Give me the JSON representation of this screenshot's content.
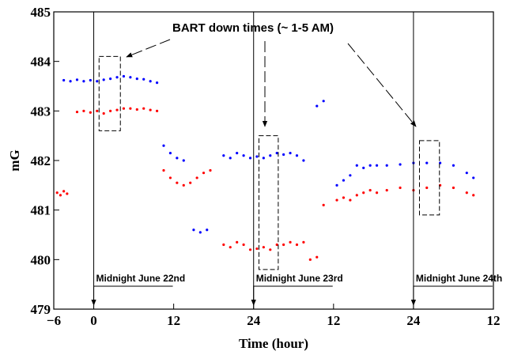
{
  "chart_data": {
    "type": "scatter",
    "xlabel": "Time (hour)",
    "ylabel": "mG",
    "annotation": "BART down times (~ 1-5 AM)",
    "xlim": [
      -6,
      60
    ],
    "ylim": [
      479,
      485
    ],
    "xticks": [
      {
        "value": -6,
        "label": "−6"
      },
      0,
      12,
      24,
      {
        "value": 36,
        "label": "12"
      },
      {
        "value": 48,
        "label": "24"
      },
      {
        "value": 60,
        "label": "12"
      }
    ],
    "yticks": [
      479,
      480,
      481,
      482,
      483,
      484,
      485
    ],
    "midnights": [
      {
        "x": 0,
        "label": "Midnight June 22nd"
      },
      {
        "x": 24,
        "label": "Midnight June 23rd"
      },
      {
        "x": 48,
        "label": "Midnight June 24th"
      }
    ],
    "regions": [
      {
        "x": [
          0.8,
          4
        ],
        "y": [
          482.6,
          484.1
        ]
      },
      {
        "x": [
          24.8,
          27.7
        ],
        "y": [
          479.8,
          482.5
        ]
      },
      {
        "x": [
          48.9,
          51.9
        ],
        "y": [
          480.9,
          482.4
        ]
      }
    ],
    "series": [
      {
        "color": "#0000ff",
        "x": [
          -4.5,
          -3.5,
          -2.5,
          -1.5,
          -0.5,
          0.5,
          1.5,
          2.5,
          3.5,
          4.5,
          5.5,
          6.5,
          7.5,
          8.5,
          9.5,
          10.5,
          11.5,
          12.5,
          13.5,
          15,
          16,
          17,
          19.5,
          20.5,
          21.5,
          22.5,
          23.5,
          24.5,
          25.5,
          26.5,
          27.5,
          28.5,
          29.5,
          30.5,
          31.5,
          33.5,
          34.5,
          36.5,
          37.5,
          38.5,
          39.5,
          40.5,
          41.5,
          42.5,
          44,
          46,
          48,
          50,
          52,
          54,
          56,
          57
        ],
        "values": [
          483.62,
          483.6,
          483.63,
          483.6,
          483.62,
          483.6,
          483.63,
          483.65,
          483.68,
          483.7,
          483.68,
          483.65,
          483.64,
          483.6,
          483.57,
          482.3,
          482.15,
          482.05,
          482.0,
          480.6,
          480.55,
          480.6,
          482.1,
          482.05,
          482.15,
          482.1,
          482.05,
          482.08,
          482.05,
          482.1,
          482.15,
          482.12,
          482.15,
          482.1,
          482.0,
          483.1,
          483.2,
          481.5,
          481.6,
          481.7,
          481.9,
          481.85,
          481.9,
          481.9,
          481.9,
          481.92,
          481.95,
          481.95,
          481.95,
          481.9,
          481.75,
          481.65
        ]
      },
      {
        "color": "#ff0000",
        "x": [
          -5.5,
          -5,
          -4.5,
          -4,
          -2.5,
          -1.5,
          -0.5,
          0.5,
          1.5,
          2.5,
          3.5,
          4.5,
          5.5,
          6.5,
          7.5,
          8.5,
          9.5,
          10.5,
          11.5,
          12.5,
          13.5,
          14.5,
          15.5,
          16.5,
          17.5,
          19.5,
          20.5,
          21.5,
          22.5,
          23.5,
          24.5,
          25.5,
          26.5,
          27.5,
          28.5,
          29.5,
          30.5,
          31.5,
          32.5,
          33.5,
          34.5,
          36.5,
          37.5,
          38.5,
          39.5,
          40.5,
          41.5,
          42.5,
          44,
          46,
          48,
          50,
          52,
          54,
          56,
          57
        ],
        "values": [
          481.35,
          481.3,
          481.38,
          481.33,
          482.98,
          483.0,
          482.97,
          483.0,
          482.95,
          483.0,
          483.02,
          483.05,
          483.05,
          483.03,
          483.05,
          483.02,
          483.0,
          481.8,
          481.65,
          481.55,
          481.5,
          481.55,
          481.65,
          481.75,
          481.8,
          480.3,
          480.25,
          480.35,
          480.3,
          480.2,
          480.22,
          480.25,
          480.2,
          480.3,
          480.3,
          480.35,
          480.3,
          480.35,
          480.0,
          480.05,
          481.1,
          481.2,
          481.25,
          481.2,
          481.3,
          481.35,
          481.4,
          481.35,
          481.4,
          481.45,
          481.4,
          481.45,
          481.5,
          481.45,
          481.35,
          481.3
        ]
      }
    ]
  }
}
